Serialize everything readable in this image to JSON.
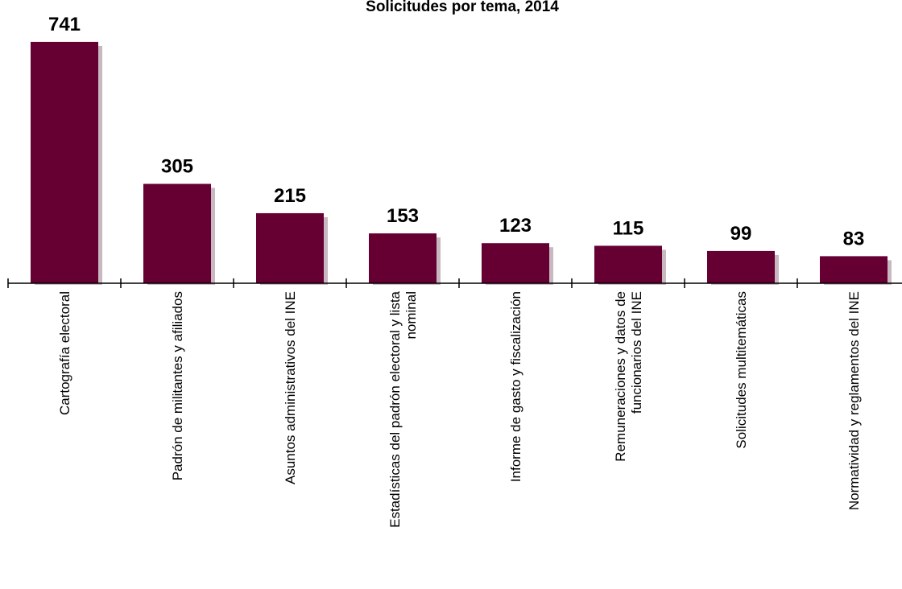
{
  "chart_data": {
    "type": "bar",
    "title": "Solicitudes por tema, 2014",
    "xlabel": "",
    "ylabel": "",
    "categories": [
      [
        "Cartografía electoral"
      ],
      [
        "Padrón de militantes y afiliados"
      ],
      [
        "Asuntos administrativos del INE"
      ],
      [
        "Estadísticas del padrón electoral y lista",
        "nominal"
      ],
      [
        "Informe de gasto y fiscalización"
      ],
      [
        "Remuneraciones y datos de",
        "funcionarios del INE"
      ],
      [
        "Solicitudes multitemáticas"
      ],
      [
        "Normatividad y reglamentos del INE"
      ]
    ],
    "values": [
      741,
      305,
      215,
      153,
      123,
      115,
      99,
      83
    ],
    "ylim": [
      0,
      741
    ],
    "grid": false,
    "legend": "none",
    "bar_color": "#660033",
    "shadow_color": "#c8b8bf"
  }
}
